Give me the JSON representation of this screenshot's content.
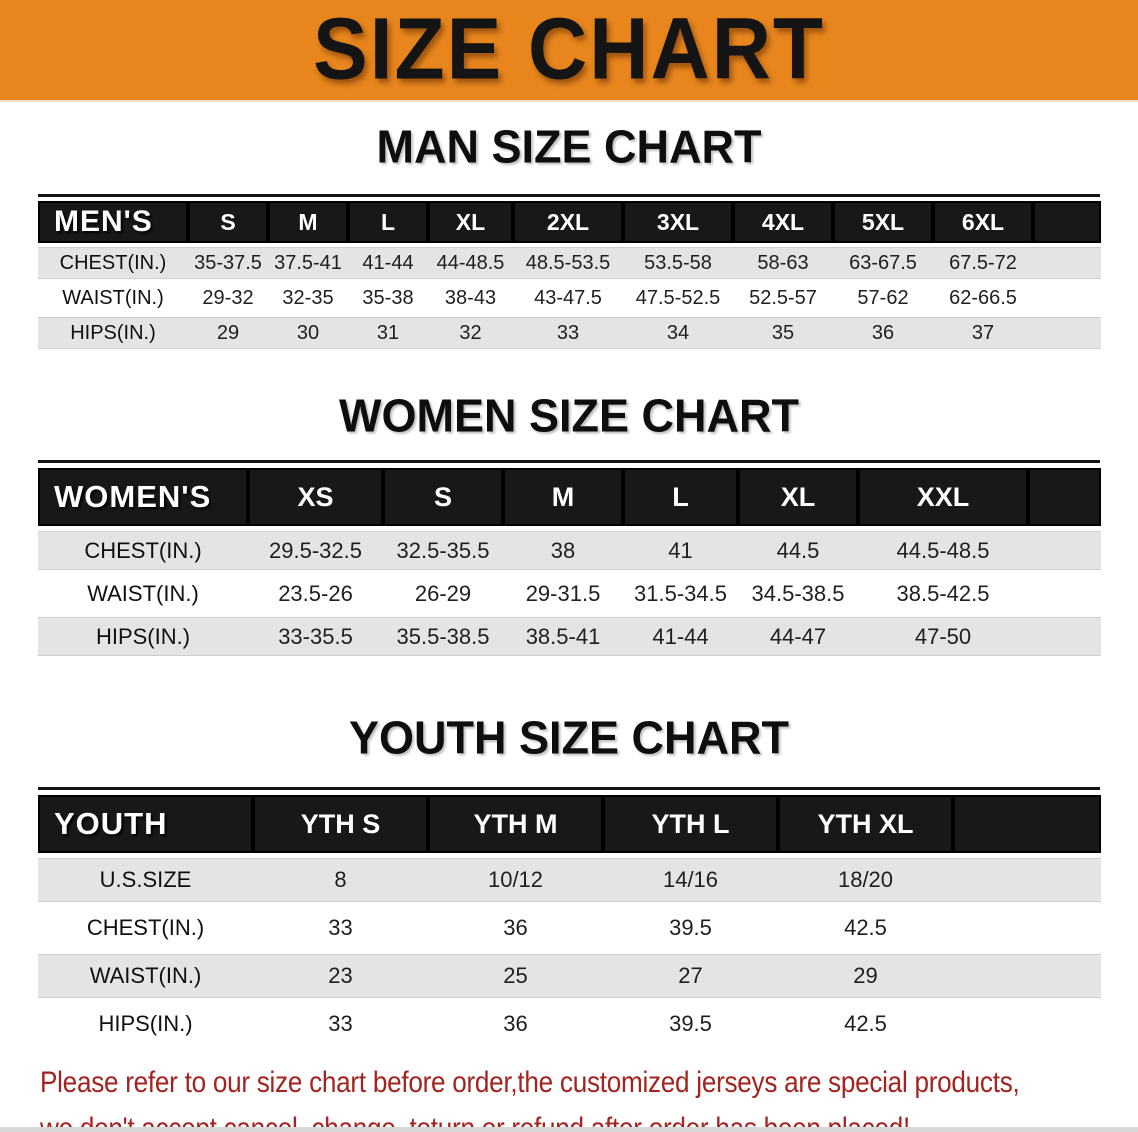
{
  "banner": {
    "title": "SIZE CHART",
    "background": "#e8861d",
    "text_color": "#141414"
  },
  "chart_data": [
    {
      "type": "table",
      "title": "MAN SIZE CHART",
      "corner_label": "MEN'S",
      "columns": [
        "S",
        "M",
        "L",
        "XL",
        "2XL",
        "3XL",
        "4XL",
        "5XL",
        "6XL"
      ],
      "rows": [
        {
          "label": "CHEST(IN.)",
          "values": [
            "35-37.5",
            "37.5-41",
            "41-44",
            "44-48.5",
            "48.5-53.5",
            "53.5-58",
            "58-63",
            "63-67.5",
            "67.5-72"
          ]
        },
        {
          "label": "WAIST(IN.)",
          "values": [
            "29-32",
            "32-35",
            "35-38",
            "38-43",
            "43-47.5",
            "47.5-52.5",
            "52.5-57",
            "57-62",
            "62-66.5"
          ]
        },
        {
          "label": "HIPS(IN.)",
          "values": [
            "29",
            "30",
            "31",
            "32",
            "33",
            "34",
            "35",
            "36",
            "37"
          ]
        }
      ]
    },
    {
      "type": "table",
      "title": "WOMEN SIZE CHART",
      "corner_label": "WOMEN'S",
      "columns": [
        "XS",
        "S",
        "M",
        "L",
        "XL",
        "XXL"
      ],
      "rows": [
        {
          "label": "CHEST(IN.)",
          "values": [
            "29.5-32.5",
            "32.5-35.5",
            "38",
            "41",
            "44.5",
            "44.5-48.5"
          ]
        },
        {
          "label": "WAIST(IN.)",
          "values": [
            "23.5-26",
            "26-29",
            "29-31.5",
            "31.5-34.5",
            "34.5-38.5",
            "38.5-42.5"
          ]
        },
        {
          "label": "HIPS(IN.)",
          "values": [
            "33-35.5",
            "35.5-38.5",
            "38.5-41",
            "41-44",
            "44-47",
            "47-50"
          ]
        }
      ]
    },
    {
      "type": "table",
      "title": "YOUTH SIZE CHART",
      "corner_label": "YOUTH",
      "columns": [
        "YTH S",
        "YTH M",
        "YTH L",
        "YTH XL"
      ],
      "rows": [
        {
          "label": "U.S.SIZE",
          "values": [
            "8",
            "10/12",
            "14/16",
            "18/20"
          ]
        },
        {
          "label": "CHEST(IN.)",
          "values": [
            "33",
            "36",
            "39.5",
            "42.5"
          ]
        },
        {
          "label": "WAIST(IN.)",
          "values": [
            "23",
            "25",
            "27",
            "29"
          ]
        },
        {
          "label": "HIPS(IN.)",
          "values": [
            "33",
            "36",
            "39.5",
            "42.5"
          ]
        }
      ]
    }
  ],
  "footer": {
    "line1": "Please refer to our size chart before order,the customized jerseys are special products,",
    "line2": "we don't accept cancel, change, teturn or refund after order has been placed!",
    "text_color": "#a32320"
  }
}
